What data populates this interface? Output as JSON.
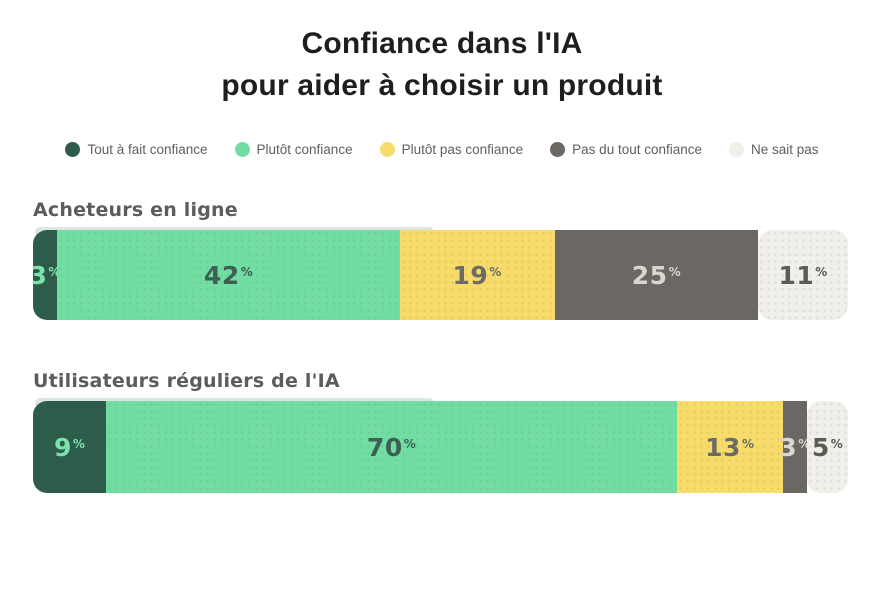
{
  "title": {
    "line1": "Confiance dans l'IA",
    "line2": "pour aider à choisir un produit"
  },
  "legend": [
    {
      "label": "Tout à fait confiance",
      "color": "#2E5C4A"
    },
    {
      "label": "Plutôt confiance",
      "color": "#72DDA2"
    },
    {
      "label": "Plutôt pas confiance",
      "color": "#F7DB6B"
    },
    {
      "label": "Pas du tout confiance",
      "color": "#6B6762"
    },
    {
      "label": "Ne sait pas",
      "color": "#F0EFEA"
    }
  ],
  "unit": "%",
  "chart_data": {
    "type": "bar",
    "variant": "horizontal-stacked-100",
    "title": "Confiance dans l'IA pour aider à choisir un produit",
    "unit": "%",
    "xlim": [
      0,
      100
    ],
    "grid": false,
    "legend_position": "top",
    "categories": [
      "Tout à fait confiance",
      "Plutôt confiance",
      "Plutôt pas confiance",
      "Pas du tout confiance",
      "Ne sait pas"
    ],
    "series_colors": [
      "#2E5C4A",
      "#72DDA2",
      "#F7DB6B",
      "#6B6762",
      "#F0EFEA"
    ],
    "groups": [
      {
        "label": "Acheteurs en ligne",
        "values": [
          3,
          42,
          19,
          25,
          11
        ]
      },
      {
        "label": "Utilisateurs réguliers de l'IA",
        "values": [
          9,
          70,
          13,
          3,
          5
        ]
      }
    ]
  }
}
